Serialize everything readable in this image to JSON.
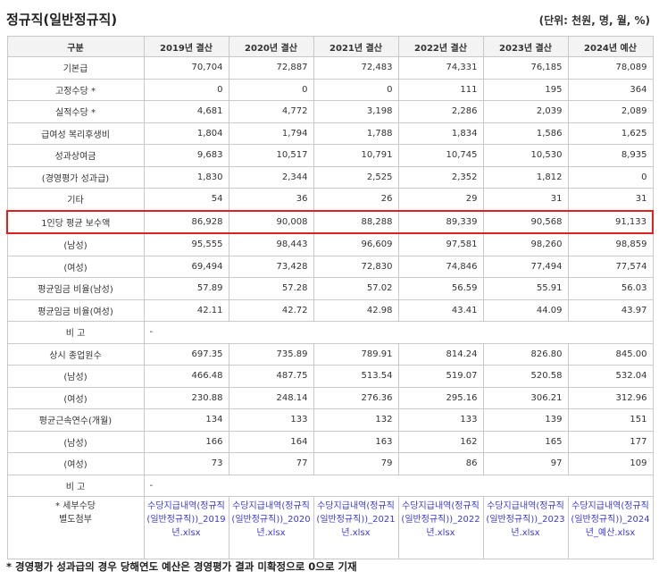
{
  "title": "정규직(일반정규직)",
  "unit": "(단위: 천원, 명, 월, %)",
  "columns": [
    "구분",
    "2019년 결산",
    "2020년 결산",
    "2021년 결산",
    "2022년 결산",
    "2023년 결산",
    "2024년 예산"
  ],
  "rows": [
    {
      "label": "기본급",
      "values": [
        "70,704",
        "72,887",
        "72,483",
        "74,331",
        "76,185",
        "78,089"
      ]
    },
    {
      "label": "고정수당 *",
      "values": [
        "0",
        "0",
        "0",
        "111",
        "195",
        "364"
      ]
    },
    {
      "label": "실적수당 *",
      "values": [
        "4,681",
        "4,772",
        "3,198",
        "2,286",
        "2,039",
        "2,089"
      ]
    },
    {
      "label": "급여성 복리후생비",
      "values": [
        "1,804",
        "1,794",
        "1,788",
        "1,834",
        "1,586",
        "1,625"
      ]
    },
    {
      "label": "성과상여금",
      "values": [
        "9,683",
        "10,517",
        "10,791",
        "10,745",
        "10,530",
        "8,935"
      ]
    },
    {
      "label": "(경영평가 성과급)",
      "values": [
        "1,830",
        "2,344",
        "2,525",
        "2,352",
        "1,812",
        "0"
      ]
    },
    {
      "label": "기타",
      "values": [
        "54",
        "36",
        "26",
        "29",
        "31",
        "31"
      ]
    },
    {
      "label": "1인당 평균 보수액",
      "values": [
        "86,928",
        "90,008",
        "88,288",
        "89,339",
        "90,568",
        "91,133"
      ],
      "highlight": true
    },
    {
      "label": "(남성)",
      "values": [
        "95,555",
        "98,443",
        "96,609",
        "97,581",
        "98,260",
        "98,859"
      ]
    },
    {
      "label": "(여성)",
      "values": [
        "69,494",
        "73,428",
        "72,830",
        "74,846",
        "77,494",
        "77,574"
      ]
    },
    {
      "label": "평균임금 비율(남성)",
      "values": [
        "57.89",
        "57.28",
        "57.02",
        "56.59",
        "55.91",
        "56.03"
      ]
    },
    {
      "label": "평균임금 비율(여성)",
      "values": [
        "42.11",
        "42.72",
        "42.98",
        "43.41",
        "44.09",
        "43.97"
      ]
    },
    {
      "label": "비 고",
      "remark": "-"
    },
    {
      "label": "상시 종업원수",
      "values": [
        "697.35",
        "735.89",
        "789.91",
        "814.24",
        "826.80",
        "845.00"
      ]
    },
    {
      "label": "(남성)",
      "values": [
        "466.48",
        "487.75",
        "513.54",
        "519.07",
        "520.58",
        "532.04"
      ]
    },
    {
      "label": "(여성)",
      "values": [
        "230.88",
        "248.14",
        "276.36",
        "295.16",
        "306.21",
        "312.96"
      ]
    },
    {
      "label": "평균근속연수(개월)",
      "values": [
        "134",
        "133",
        "132",
        "133",
        "139",
        "151"
      ]
    },
    {
      "label": "(남성)",
      "values": [
        "166",
        "164",
        "163",
        "162",
        "165",
        "177"
      ]
    },
    {
      "label": "(여성)",
      "values": [
        "73",
        "77",
        "79",
        "86",
        "97",
        "109"
      ]
    },
    {
      "label": "비 고",
      "remark": "-"
    }
  ],
  "files_row": {
    "label_line1": "* 세부수당",
    "label_line2": "별도첨부",
    "files": [
      "수당지급내역(정규직(일반정규직))_2019년.xlsx",
      "수당지급내역(정규직(일반정규직))_2020년.xlsx",
      "수당지급내역(정규직(일반정규직))_2021년.xlsx",
      "수당지급내역(정규직(일반정규직))_2022년.xlsx",
      "수당지급내역(정규직(일반정규직))_2023년.xlsx",
      "수당지급내역(정규직(일반정규직))_2024년_예산.xlsx"
    ]
  },
  "footnote": "* 경영평가 성과급의 경우 당해연도 예산은 경영평가 결과 미확정으로 0으로 기재"
}
